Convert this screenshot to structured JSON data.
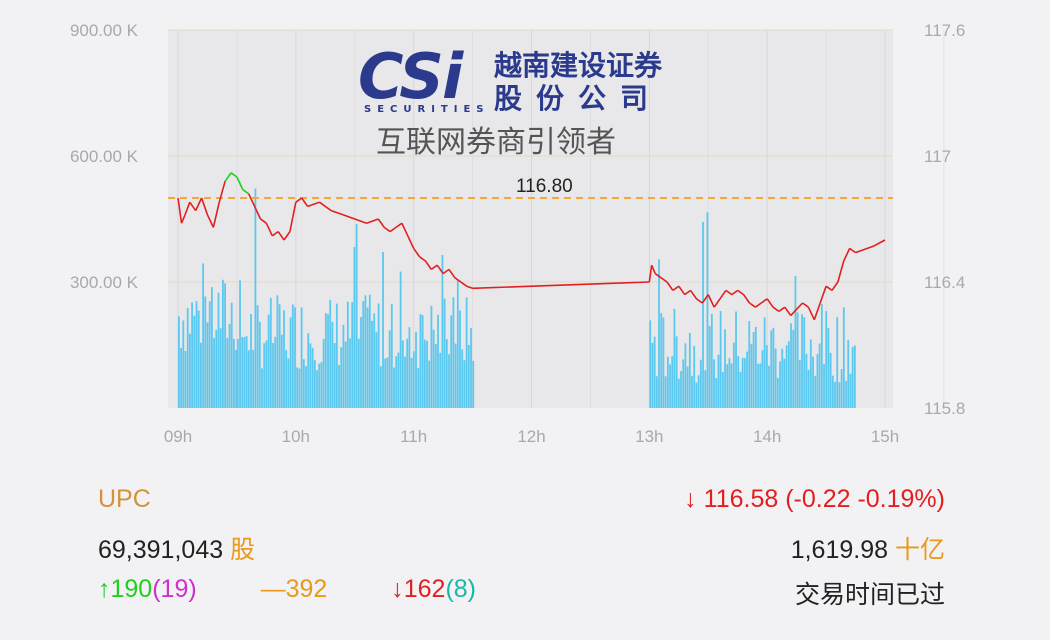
{
  "logo": {
    "mark": "CSi",
    "sub": "SECURITIES",
    "name_line1": "越南建设证券",
    "name_line2": "股份公司",
    "slogan": "互联网券商引领者"
  },
  "summary": {
    "index_name": "UPC",
    "price_arrow": "↓",
    "price_text": "116.58 (-0.22 -0.19%)",
    "volume": "69,391,043",
    "volume_unit": "股",
    "value": "1,619.98",
    "value_unit": "十亿",
    "advances_arrow": "↑",
    "advances": "190",
    "advances_ceiling": "(19)",
    "unchanged_mark": "—",
    "unchanged": "392",
    "declines_arrow": "↓",
    "declines": "162",
    "declines_floor": "(8)",
    "status": "交易时间已过"
  },
  "colors": {
    "volume_bar": "#5bc8ef",
    "price_up": "#1fcf1f",
    "price_down": "#e02020",
    "reference": "#f2a93b",
    "plot_bg": "#e8e8ea",
    "grid": "#d8d8dc"
  },
  "chart_data": {
    "type": "line",
    "x_ticks": [
      "09h",
      "10h",
      "11h",
      "12h",
      "13h",
      "14h",
      "15h"
    ],
    "x_range_hours": [
      9,
      15
    ],
    "left_axis": {
      "ticks": [
        "900.00 K",
        "600.00 K",
        "300.00 K"
      ],
      "range": [
        0,
        900000
      ]
    },
    "right_axis": {
      "ticks": [
        "117.6",
        "117",
        "116.4",
        "115.8"
      ],
      "range": [
        115.8,
        117.6
      ]
    },
    "reference_price": 116.8,
    "reference_label": "116.80",
    "grid": true,
    "price_series": [
      [
        9.0,
        116.8
      ],
      [
        9.03,
        116.68
      ],
      [
        9.06,
        116.72
      ],
      [
        9.1,
        116.78
      ],
      [
        9.15,
        116.74
      ],
      [
        9.2,
        116.8
      ],
      [
        9.25,
        116.72
      ],
      [
        9.3,
        116.66
      ],
      [
        9.35,
        116.78
      ],
      [
        9.4,
        116.88
      ],
      [
        9.45,
        116.92
      ],
      [
        9.5,
        116.9
      ],
      [
        9.55,
        116.84
      ],
      [
        9.6,
        116.82
      ],
      [
        9.65,
        116.76
      ],
      [
        9.7,
        116.7
      ],
      [
        9.75,
        116.68
      ],
      [
        9.8,
        116.62
      ],
      [
        9.85,
        116.64
      ],
      [
        9.9,
        116.6
      ],
      [
        9.95,
        116.64
      ],
      [
        10.0,
        116.78
      ],
      [
        10.05,
        116.8
      ],
      [
        10.1,
        116.76
      ],
      [
        10.2,
        116.78
      ],
      [
        10.3,
        116.74
      ],
      [
        10.4,
        116.72
      ],
      [
        10.5,
        116.7
      ],
      [
        10.6,
        116.68
      ],
      [
        10.7,
        116.7
      ],
      [
        10.75,
        116.66
      ],
      [
        10.8,
        116.64
      ],
      [
        10.85,
        116.66
      ],
      [
        10.9,
        116.68
      ],
      [
        10.95,
        116.62
      ],
      [
        11.0,
        116.56
      ],
      [
        11.05,
        116.52
      ],
      [
        11.1,
        116.5
      ],
      [
        11.15,
        116.46
      ],
      [
        11.2,
        116.48
      ],
      [
        11.25,
        116.44
      ],
      [
        11.3,
        116.46
      ],
      [
        11.35,
        116.42
      ],
      [
        11.4,
        116.4
      ],
      [
        11.45,
        116.38
      ],
      [
        11.5,
        116.37
      ],
      [
        13.0,
        116.4
      ],
      [
        13.02,
        116.48
      ],
      [
        13.05,
        116.44
      ],
      [
        13.1,
        116.42
      ],
      [
        13.15,
        116.4
      ],
      [
        13.2,
        116.36
      ],
      [
        13.25,
        116.38
      ],
      [
        13.3,
        116.34
      ],
      [
        13.35,
        116.36
      ],
      [
        13.4,
        116.32
      ],
      [
        13.45,
        116.3
      ],
      [
        13.5,
        116.34
      ],
      [
        13.55,
        116.28
      ],
      [
        13.6,
        116.32
      ],
      [
        13.65,
        116.36
      ],
      [
        13.7,
        116.34
      ],
      [
        13.75,
        116.36
      ],
      [
        13.8,
        116.34
      ],
      [
        13.85,
        116.3
      ],
      [
        13.9,
        116.28
      ],
      [
        13.95,
        116.3
      ],
      [
        14.0,
        116.32
      ],
      [
        14.05,
        116.28
      ],
      [
        14.1,
        116.26
      ],
      [
        14.15,
        116.28
      ],
      [
        14.2,
        116.24
      ],
      [
        14.25,
        116.27
      ],
      [
        14.3,
        116.3
      ],
      [
        14.35,
        116.28
      ],
      [
        14.4,
        116.22
      ],
      [
        14.45,
        116.3
      ],
      [
        14.5,
        116.38
      ],
      [
        14.55,
        116.36
      ],
      [
        14.6,
        116.4
      ],
      [
        14.65,
        116.5
      ],
      [
        14.7,
        116.56
      ],
      [
        14.75,
        116.54
      ],
      [
        14.8,
        116.55
      ],
      [
        14.9,
        116.57
      ],
      [
        15.0,
        116.6
      ]
    ]
  }
}
